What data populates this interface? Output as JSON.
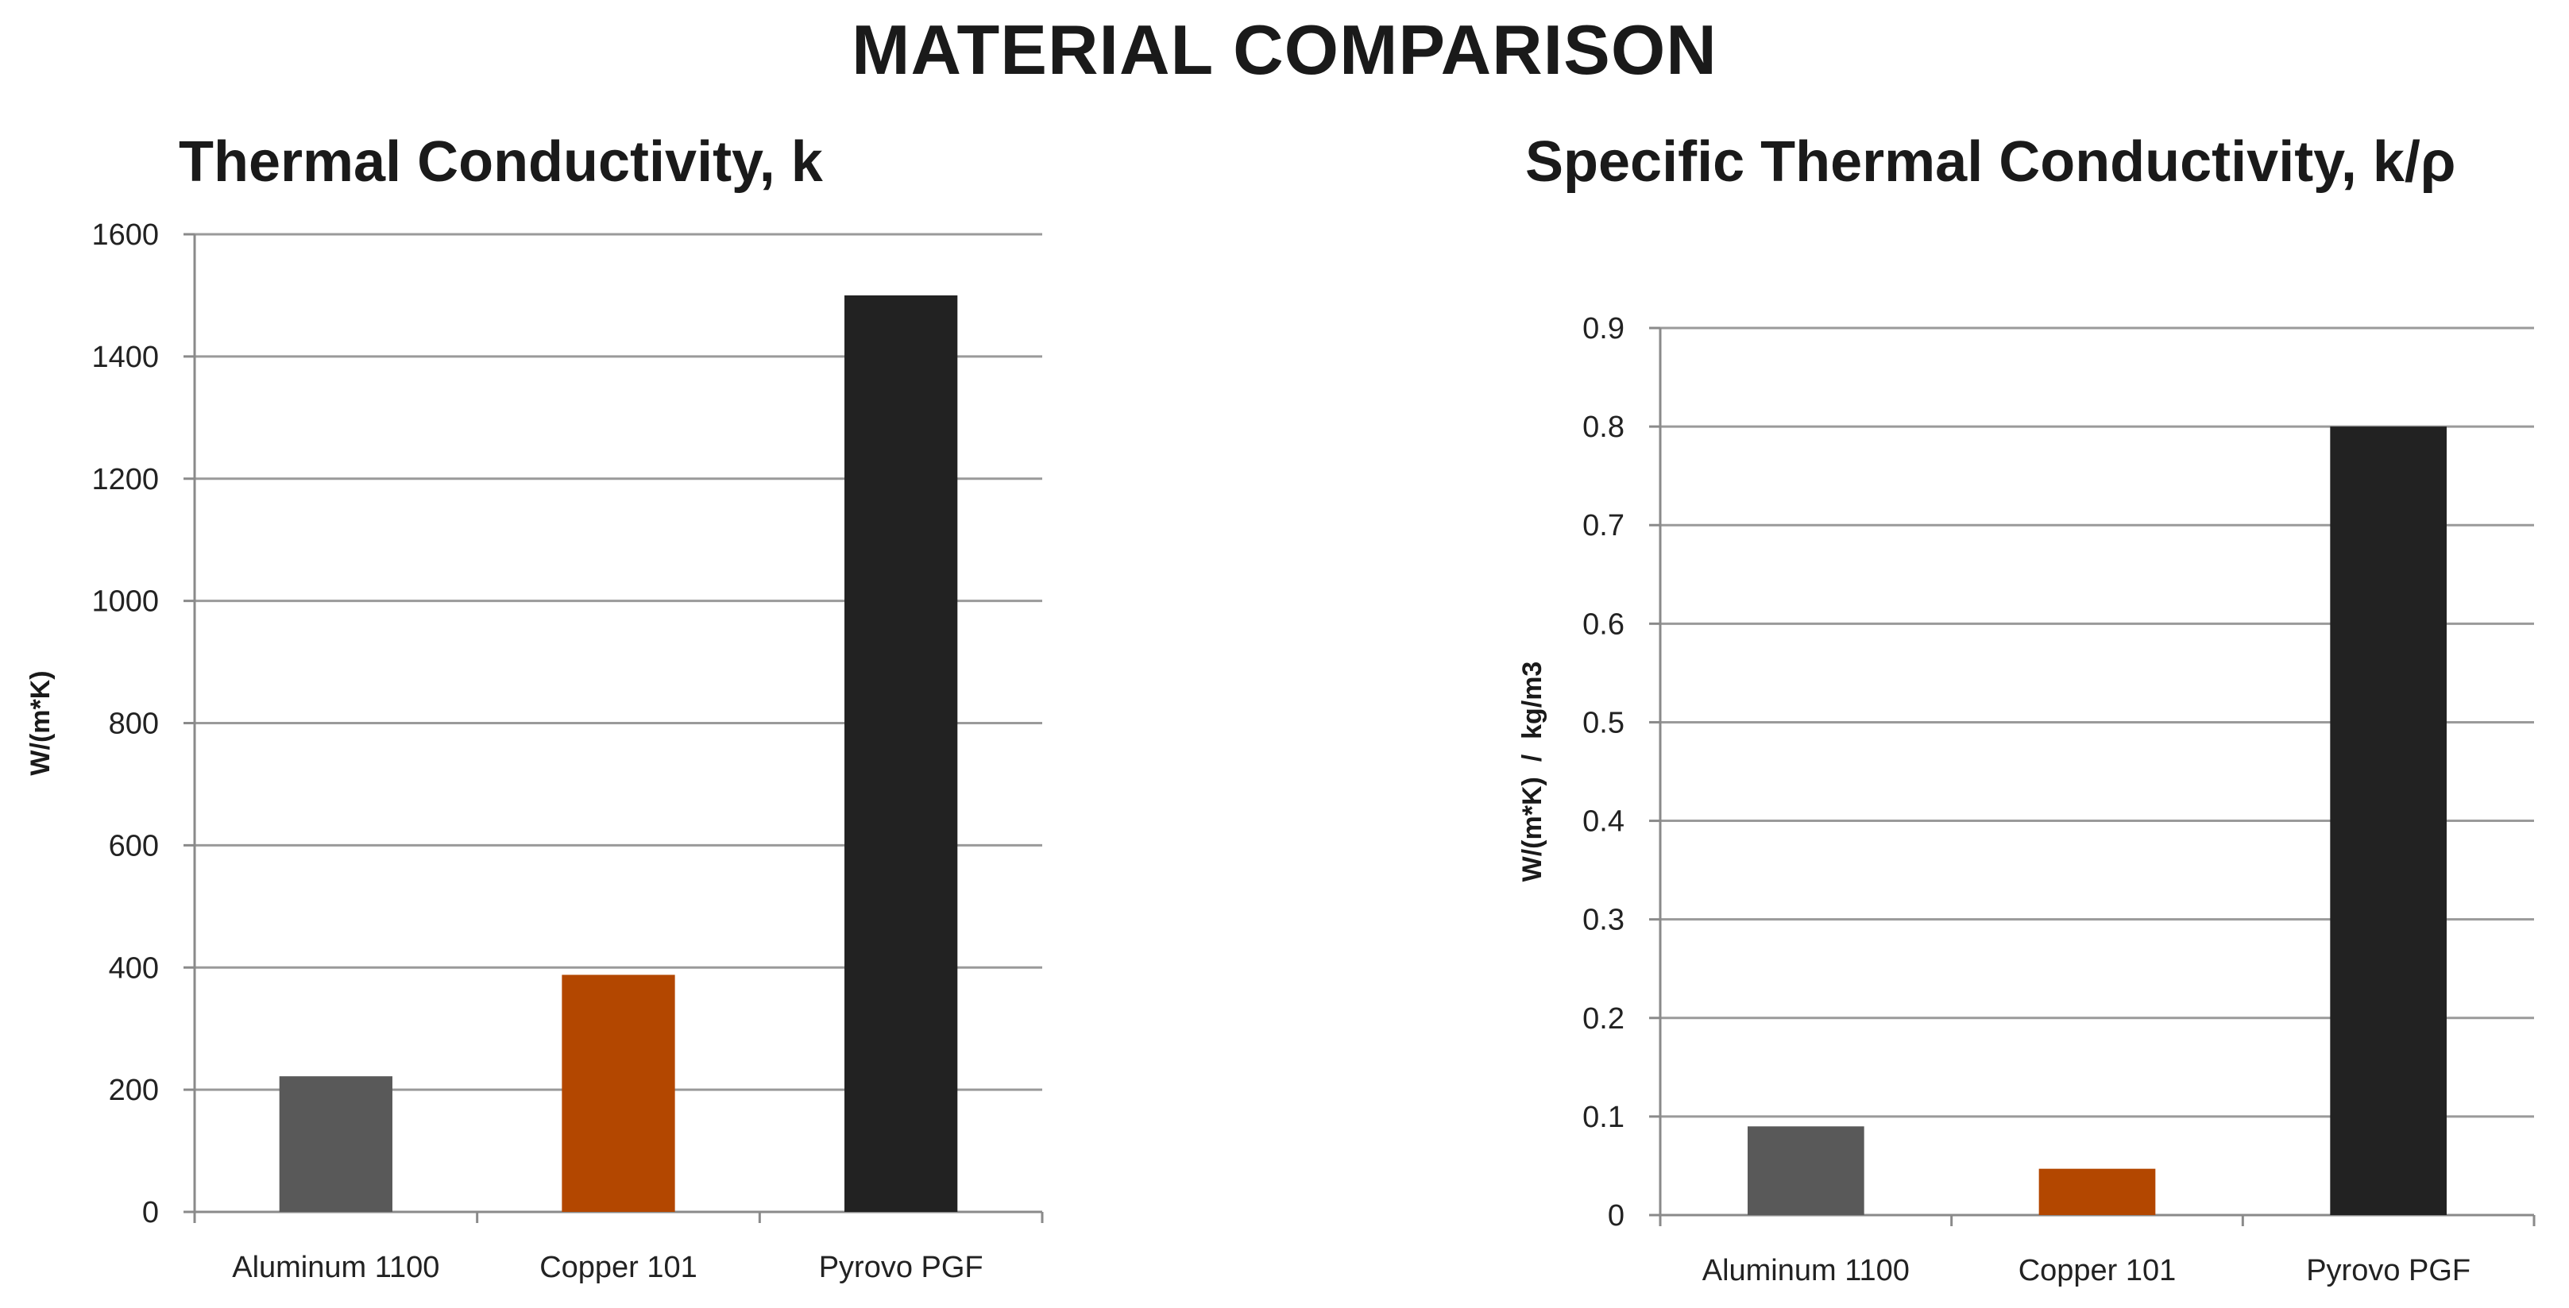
{
  "title": "MATERIAL COMPARISON",
  "colors": {
    "grid": "#9a9a9a",
    "axis": "#8a8a8a"
  },
  "chart_data": [
    {
      "type": "bar",
      "title": "Thermal Conductivity, k",
      "xlabel": "",
      "ylabel": "W/(m*K)",
      "categories": [
        "Aluminum 1100",
        "Copper 101",
        "Pyrovo PGF"
      ],
      "values": [
        222,
        388,
        1500
      ],
      "bar_colors": [
        "#595959",
        "#b34700",
        "#222222"
      ],
      "ylim": [
        0,
        1600
      ],
      "yticks": [
        0,
        200,
        400,
        600,
        800,
        1000,
        1200,
        1400,
        1600
      ],
      "ytick_labels": [
        "0",
        "200",
        "400",
        "600",
        "800",
        "1000",
        "1200",
        "1400",
        "1600"
      ],
      "grid": true
    },
    {
      "type": "bar",
      "title": "Specific Thermal Conductivity, k/ρ",
      "xlabel": "",
      "ylabel": "W/(m*K)  /  kg/m3",
      "categories": [
        "Aluminum 1100",
        "Copper 101",
        "Pyrovo PGF"
      ],
      "values": [
        0.09,
        0.047,
        0.8
      ],
      "bar_colors": [
        "#595959",
        "#b34700",
        "#222222"
      ],
      "ylim": [
        0,
        0.9
      ],
      "yticks": [
        0,
        0.1,
        0.2,
        0.3,
        0.4,
        0.5,
        0.6,
        0.7,
        0.8,
        0.9
      ],
      "ytick_labels": [
        "0",
        "0.1",
        "0.2",
        "0.3",
        "0.4",
        "0.5",
        "0.6",
        "0.7",
        "0.8",
        "0.9"
      ],
      "grid": true
    }
  ]
}
